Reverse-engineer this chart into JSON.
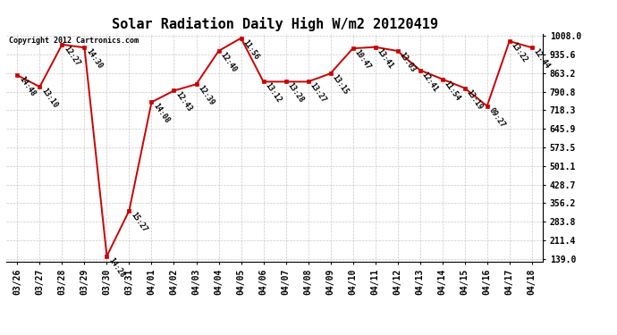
{
  "title": "Solar Radiation Daily High W/m2 20120419",
  "copyright_text": "Copyright 2012 Cartronics.com",
  "dates": [
    "03/26",
    "03/27",
    "03/28",
    "03/29",
    "03/30",
    "03/31",
    "04/01",
    "04/02",
    "04/03",
    "04/04",
    "04/05",
    "04/06",
    "04/07",
    "04/08",
    "04/09",
    "04/10",
    "04/11",
    "04/12",
    "04/13",
    "04/14",
    "04/15",
    "04/16",
    "04/17",
    "04/18"
  ],
  "values": [
    855,
    810,
    975,
    963,
    149,
    327,
    750,
    795,
    820,
    950,
    1000,
    830,
    830,
    830,
    862,
    960,
    965,
    950,
    875,
    840,
    805,
    735,
    988,
    963
  ],
  "time_labels": [
    "14:48",
    "13:10",
    "12:27",
    "14:30",
    "14:28",
    "15:27",
    "14:08",
    "12:43",
    "12:39",
    "12:40",
    "11:56",
    "13:12",
    "13:28",
    "13:27",
    "13:15",
    "10:47",
    "13:41",
    "13:03",
    "12:41",
    "11:54",
    "13:19",
    "09:27",
    "13:22",
    "12:44"
  ],
  "ymin": 139.0,
  "ymax": 1008.0,
  "ytick_vals": [
    139.0,
    211.4,
    283.8,
    356.2,
    428.7,
    501.1,
    573.5,
    645.9,
    718.3,
    790.8,
    863.2,
    935.6,
    1008.0
  ],
  "line_color": "#cc0000",
  "marker_color": "#cc0000",
  "bg_color": "#ffffff",
  "grid_color": "#bbbbbb",
  "title_fontsize": 11,
  "tick_fontsize": 7,
  "annot_fontsize": 6,
  "copyright_fontsize": 6
}
